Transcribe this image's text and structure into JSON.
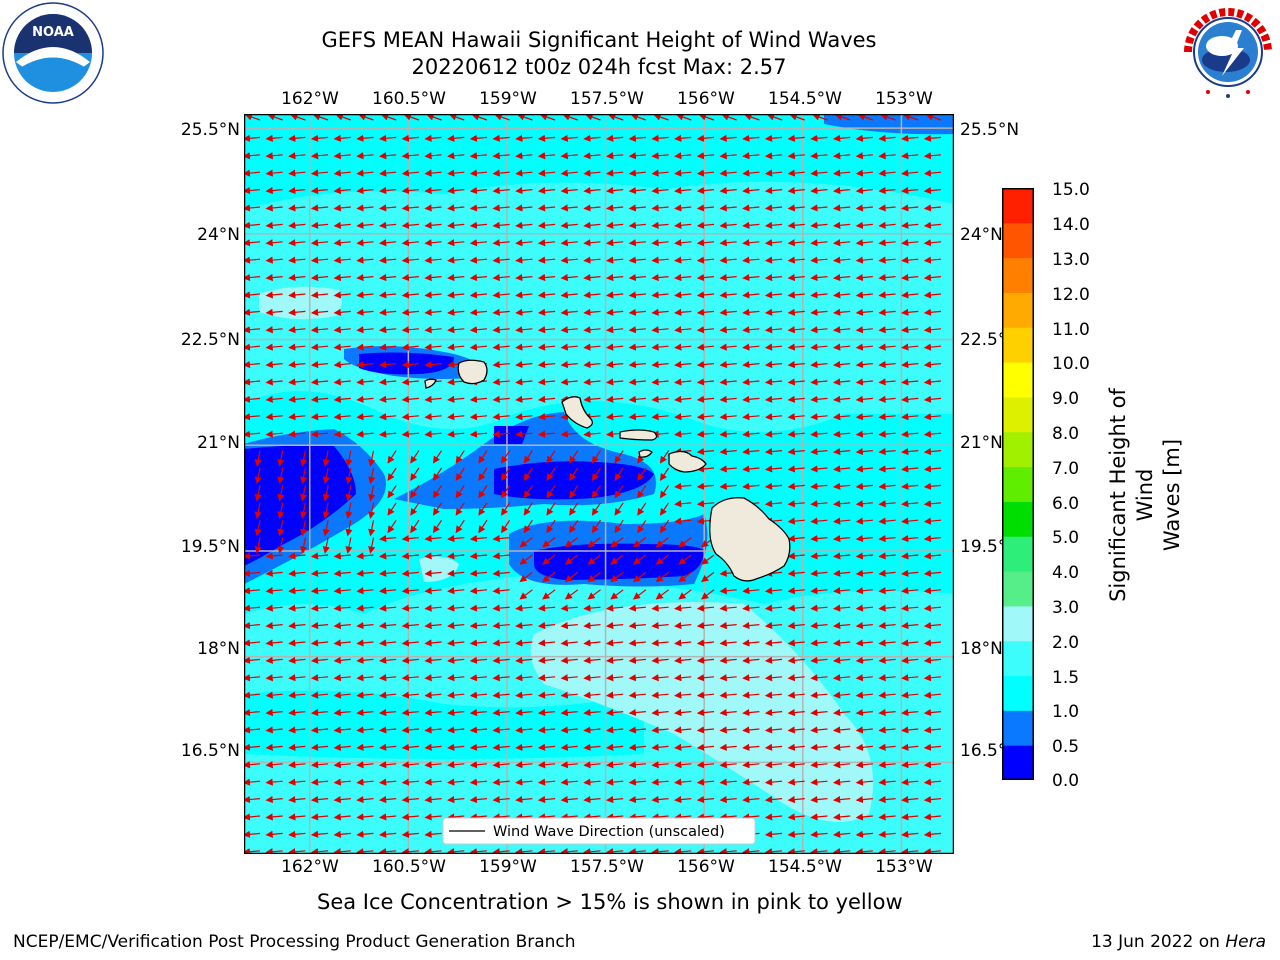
{
  "header": {
    "title_line1": "GEFS MEAN Hawaii Significant Height of Wind Waves",
    "title_line2": "20220612 t00z 024h fcst   Max: 2.57"
  },
  "logos": {
    "left": {
      "name": "noaa-logo",
      "text": "NOAA",
      "ring_text": "NATIONAL OCEANIC AND ATMOSPHERIC ADMINISTRATION · U.S. DEPARTMENT OF COMMERCE"
    },
    "right": {
      "name": "nws-logo",
      "ring_text": "NATIONAL WEATHER SERVICE"
    }
  },
  "map": {
    "lon_labels": [
      "162°W",
      "160.5°W",
      "159°W",
      "157.5°W",
      "156°W",
      "154.5°W",
      "153°W"
    ],
    "lat_labels": [
      "25.5°N",
      "24°N",
      "22.5°N",
      "21°N",
      "19.5°N",
      "18°N",
      "16.5°N"
    ],
    "lon_values": [
      -162,
      -160.5,
      -159,
      -157.5,
      -156,
      -154.5,
      -153
    ],
    "lat_values": [
      25.5,
      24,
      22.5,
      21,
      19.5,
      18,
      16.5
    ],
    "lon_range": [
      -163,
      -152.2
    ],
    "lat_range": [
      15.2,
      25.7
    ],
    "gridlines": true,
    "wave_direction": "westward (arrows point from east to west)",
    "legend": {
      "label": "Wind Wave Direction (unscaled)",
      "placement": "bottom-center"
    }
  },
  "colorbar": {
    "title": "Significant Height of Wind Waves [m]",
    "title_line1": "Significant Height of Wind",
    "title_line2": "Waves [m]",
    "labels": [
      "15.0",
      "14.0",
      "13.0",
      "12.0",
      "11.0",
      "10.0",
      "9.0",
      "8.0",
      "7.0",
      "6.0",
      "5.0",
      "4.0",
      "3.0",
      "2.0",
      "1.5",
      "1.0",
      "0.5",
      "0.0"
    ],
    "levels": [
      0.0,
      0.5,
      1.0,
      1.5,
      2.0,
      3.0,
      4.0,
      5.0,
      6.0,
      7.0,
      8.0,
      9.0,
      10.0,
      11.0,
      12.0,
      13.0,
      14.0,
      15.0
    ],
    "colors": [
      "#0000ff",
      "#0a78ff",
      "#00ffff",
      "#3cfcfc",
      "#a0f8f8",
      "#55ee88",
      "#2eee7a",
      "#00dd00",
      "#60ee00",
      "#a0f000",
      "#ddf000",
      "#ffff00",
      "#ffd000",
      "#ffaa00",
      "#ff8000",
      "#ff5500",
      "#ff2000"
    ]
  },
  "footer": {
    "sea_ice_note": "Sea Ice Concentration > 15% is shown in pink to yellow",
    "producer": "NCEP/EMC/Verification Post Processing Product Generation Branch",
    "date_prefix": "13 Jun 2022 on ",
    "date_host": "Hera"
  }
}
